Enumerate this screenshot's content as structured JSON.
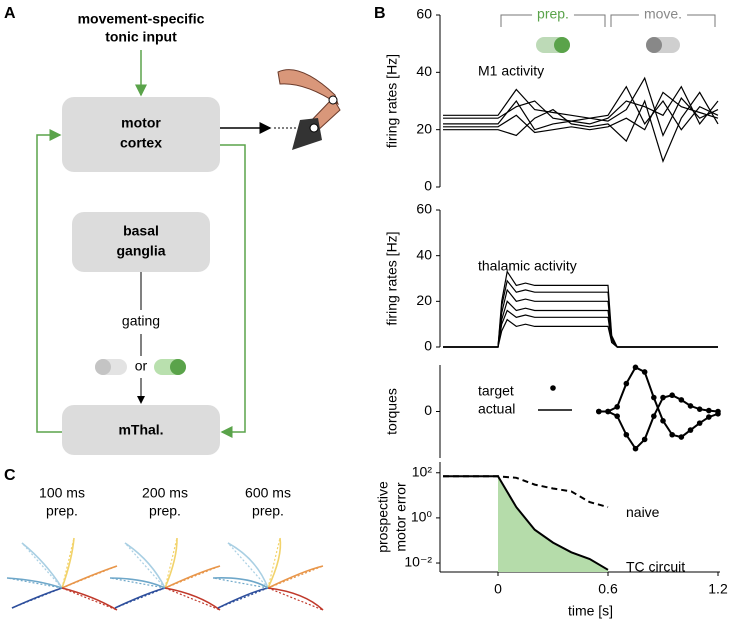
{
  "panel_a": {
    "label": "A",
    "input": [
      "movement-specific",
      "tonic input"
    ],
    "motor_cortex": [
      "motor",
      "cortex"
    ],
    "basal_ganglia": [
      "basal",
      "ganglia"
    ],
    "gating": "gating",
    "or": "or",
    "thalamus": "mThal."
  },
  "panel_b": {
    "label": "B"
  },
  "panel_c": {
    "label": "C",
    "conditions": [
      [
        "100 ms",
        "prep."
      ],
      [
        "200 ms",
        "prep."
      ],
      [
        "600 ms",
        "prep."
      ]
    ]
  },
  "chart_data": [
    {
      "type": "line",
      "annotation": "M1 activity",
      "ylabel": [
        "firing rates [Hz]"
      ],
      "phases": [
        {
          "label": "prep.",
          "start": 0,
          "end": 0.6,
          "color": "#5aa34a"
        },
        {
          "label": "move.",
          "start": 0.6,
          "end": 1.2,
          "color": "#888888"
        }
      ],
      "x": [
        -0.3,
        -0.2,
        -0.1,
        0,
        0.1,
        0.2,
        0.3,
        0.4,
        0.5,
        0.6,
        0.7,
        0.8,
        0.9,
        1.0,
        1.1,
        1.2
      ],
      "series": [
        {
          "color": "#000000",
          "values": [
            25,
            25,
            25,
            25,
            34,
            27,
            26,
            25,
            24,
            25,
            35,
            22,
            30,
            20,
            28,
            25
          ]
        },
        {
          "color": "#000000",
          "values": [
            22,
            22,
            22,
            22,
            30,
            20,
            22,
            23,
            24,
            23,
            27,
            38,
            18,
            31,
            24,
            27
          ]
        },
        {
          "color": "#000000",
          "values": [
            20,
            20,
            20,
            20,
            18,
            24,
            27,
            22,
            21,
            22,
            16,
            30,
            9,
            24,
            33,
            22
          ]
        },
        {
          "color": "#000000",
          "values": [
            24,
            24,
            24,
            24,
            28,
            30,
            24,
            23,
            22,
            24,
            30,
            28,
            25,
            35,
            22,
            30
          ]
        },
        {
          "color": "#000000",
          "values": [
            21,
            21,
            21,
            21,
            25,
            19,
            20,
            21,
            20,
            21,
            24,
            20,
            33,
            28,
            26,
            24
          ]
        }
      ],
      "xlim": [
        -0.3,
        1.2
      ],
      "ylim": [
        0,
        60
      ],
      "yticks": [
        0,
        20,
        40,
        60
      ]
    },
    {
      "type": "line",
      "annotation": "thalamic activity",
      "ylabel": [
        "firing rates [Hz]"
      ],
      "x": [
        -0.3,
        0,
        0.02,
        0.05,
        0.1,
        0.15,
        0.2,
        0.3,
        0.4,
        0.5,
        0.6,
        0.62,
        0.65,
        0.7,
        1.2
      ],
      "series": [
        {
          "color": "#000000",
          "values": [
            0,
            0,
            20,
            33,
            27,
            28,
            27,
            27,
            27,
            27,
            27,
            5,
            0,
            0,
            0
          ]
        },
        {
          "color": "#000000",
          "values": [
            0,
            0,
            18,
            29,
            24,
            25,
            24,
            24,
            24,
            24,
            24,
            4,
            0,
            0,
            0
          ]
        },
        {
          "color": "#000000",
          "values": [
            0,
            0,
            15,
            25,
            20,
            21,
            20,
            20,
            20,
            20,
            20,
            4,
            0,
            0,
            0
          ]
        },
        {
          "color": "#000000",
          "values": [
            0,
            0,
            12,
            20,
            16,
            17,
            16,
            16,
            16,
            16,
            16,
            3,
            0,
            0,
            0
          ]
        },
        {
          "color": "#000000",
          "values": [
            0,
            0,
            10,
            16,
            13,
            14,
            13,
            13,
            13,
            13,
            13,
            2,
            0,
            0,
            0
          ]
        },
        {
          "color": "#000000",
          "values": [
            0,
            0,
            7,
            12,
            9,
            10,
            9,
            9,
            9,
            9,
            9,
            2,
            0,
            0,
            0
          ]
        }
      ],
      "xlim": [
        -0.3,
        1.2
      ],
      "ylim": [
        0,
        60
      ],
      "yticks": [
        0,
        20,
        40,
        60
      ]
    },
    {
      "type": "line",
      "ylabel": [
        "torques"
      ],
      "x": [
        0.55,
        0.6,
        0.65,
        0.7,
        0.75,
        0.8,
        0.85,
        0.9,
        0.95,
        1.0,
        1.05,
        1.1,
        1.15,
        1.2
      ],
      "series": [
        {
          "name": "target",
          "style": "dots",
          "color": "#000000",
          "values": [
            0,
            0,
            0.1,
            0.6,
            0.95,
            0.85,
            0.3,
            -0.2,
            -0.5,
            -0.55,
            -0.4,
            -0.25,
            -0.12,
            -0.05
          ]
        },
        {
          "style": "dots",
          "color": "#000000",
          "values": [
            0,
            0,
            -0.1,
            -0.5,
            -0.8,
            -0.6,
            -0.1,
            0.3,
            0.35,
            0.25,
            0.12,
            0.05,
            0.02,
            0
          ]
        },
        {
          "name": "actual",
          "style": "solid",
          "color": "#000000",
          "values": [
            0,
            0,
            0.1,
            0.6,
            0.95,
            0.85,
            0.3,
            -0.2,
            -0.5,
            -0.55,
            -0.4,
            -0.25,
            -0.12,
            -0.05
          ]
        },
        {
          "style": "solid",
          "color": "#000000",
          "values": [
            0,
            0,
            -0.1,
            -0.5,
            -0.8,
            -0.6,
            -0.1,
            0.3,
            0.35,
            0.25,
            0.12,
            0.05,
            0.02,
            0
          ]
        }
      ],
      "xlim": [
        -0.3,
        1.2
      ],
      "ylim": [
        -1,
        1
      ],
      "yticks": [
        0
      ]
    },
    {
      "type": "line",
      "ylabel": [
        "prospective",
        "motor error"
      ],
      "xlabel": "time [s]",
      "log_scale": true,
      "x": [
        -0.3,
        -0.2,
        -0.1,
        0,
        0.1,
        0.2,
        0.3,
        0.4,
        0.5,
        0.6
      ],
      "series": [
        {
          "name": "naive",
          "style": "dashed",
          "color": "#000000",
          "values": [
            70,
            70,
            70,
            70,
            60,
            30,
            20,
            15,
            5,
            3
          ]
        },
        {
          "name": "TC circuit",
          "style": "solid",
          "color": "#000000",
          "fill": "#b5dcaa",
          "fill_from": 0,
          "values": [
            70,
            70,
            70,
            70,
            3,
            0.3,
            0.08,
            0.03,
            0.015,
            0.005
          ]
        }
      ],
      "xlim": [
        -0.3,
        1.2
      ],
      "xticks": [
        0,
        0.6,
        1.2
      ],
      "ylim": [
        0.004,
        300
      ],
      "yticks": [
        {
          "value": 100,
          "label": "10²"
        },
        {
          "value": 1,
          "label": "10⁰"
        },
        {
          "value": 0.01,
          "label": "10⁻²"
        }
      ]
    }
  ]
}
